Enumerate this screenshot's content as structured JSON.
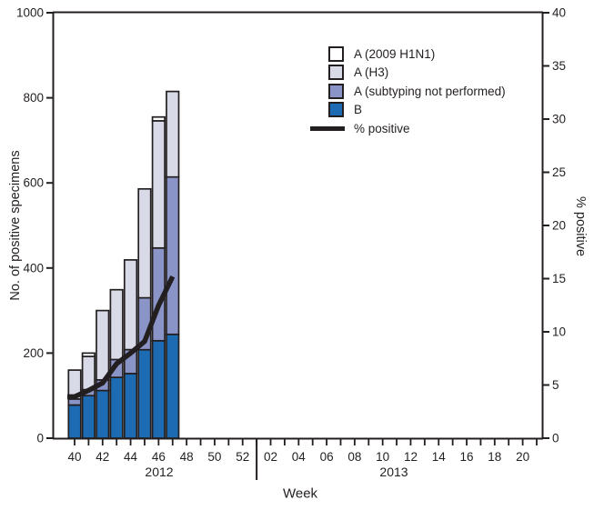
{
  "figure": {
    "xlabel": "Week",
    "ylabel_left": "No. of positive specimens",
    "ylabel_right": "% positive",
    "year_left": "2012",
    "year_right": "2013"
  },
  "legend": {
    "items": [
      {
        "label": "A (2009 H1N1)",
        "series": "A (2009 H1N1)",
        "marker": "box"
      },
      {
        "label": "A (H3)",
        "series": "A (H3)",
        "marker": "box"
      },
      {
        "label": "A (subtyping not performed)",
        "series": "A (subtyping not performed)",
        "marker": "box"
      },
      {
        "label": "B",
        "series": "B",
        "marker": "box"
      },
      {
        "label": "% positive",
        "series": "% positive",
        "marker": "line"
      }
    ]
  },
  "chart_data": {
    "type": "bar",
    "variant": "stacked-bars-with-percent-line",
    "title": "",
    "xlabel": "Week",
    "ylabel_left": "No. of positive specimens",
    "ylabel_right": "% positive",
    "ylim_left": [
      0,
      1000
    ],
    "yticks_left": [
      0,
      200,
      400,
      600,
      800,
      1000
    ],
    "ylim_right": [
      0,
      40
    ],
    "yticks_right": [
      0,
      5,
      10,
      15,
      20,
      25,
      30,
      35,
      40
    ],
    "grid": false,
    "legend_position": "upper-center",
    "week_ticks": [
      "40",
      "41",
      "42",
      "43",
      "44",
      "45",
      "46",
      "47",
      "48",
      "49",
      "50",
      "51",
      "52",
      "01",
      "02",
      "03",
      "04",
      "05",
      "06",
      "07",
      "08",
      "09",
      "10",
      "11",
      "12",
      "13",
      "14",
      "15",
      "16",
      "17",
      "18",
      "19",
      "20",
      "21"
    ],
    "labeled_weeks": [
      "40",
      "42",
      "44",
      "46",
      "48",
      "50",
      "52",
      "02",
      "04",
      "06",
      "08",
      "10",
      "12",
      "14",
      "16",
      "18",
      "20"
    ],
    "year_separator_week": "01",
    "categories": [
      "40",
      "41",
      "42",
      "43",
      "44",
      "45",
      "46",
      "47"
    ],
    "series": [
      {
        "name": "B",
        "color": "#1d6cb3",
        "values": [
          78,
          100,
          112,
          143,
          152,
          208,
          229,
          244
        ]
      },
      {
        "name": "A (subtyping not performed)",
        "color": "#8a94c6",
        "values": [
          14,
          14,
          25,
          42,
          56,
          122,
          218,
          370
        ]
      },
      {
        "name": "A (H3)",
        "color": "#d9dae7",
        "values": [
          68,
          78,
          163,
          164,
          211,
          256,
          299,
          201
        ]
      },
      {
        "name": "A (2009 H1N1)",
        "color": "#ffffff",
        "values": [
          0,
          8,
          0,
          0,
          0,
          0,
          9,
          0
        ]
      }
    ],
    "bar_totals": [
      160,
      200,
      300,
      349,
      419,
      586,
      755,
      815
    ],
    "line": {
      "name": "% positive",
      "color": "#231f20",
      "values": [
        3.9,
        4.5,
        5.2,
        7.0,
        8.0,
        9.1,
        12.5,
        15.2
      ]
    },
    "colors": {
      "ink": "#231f20",
      "background": "#ffffff"
    }
  }
}
